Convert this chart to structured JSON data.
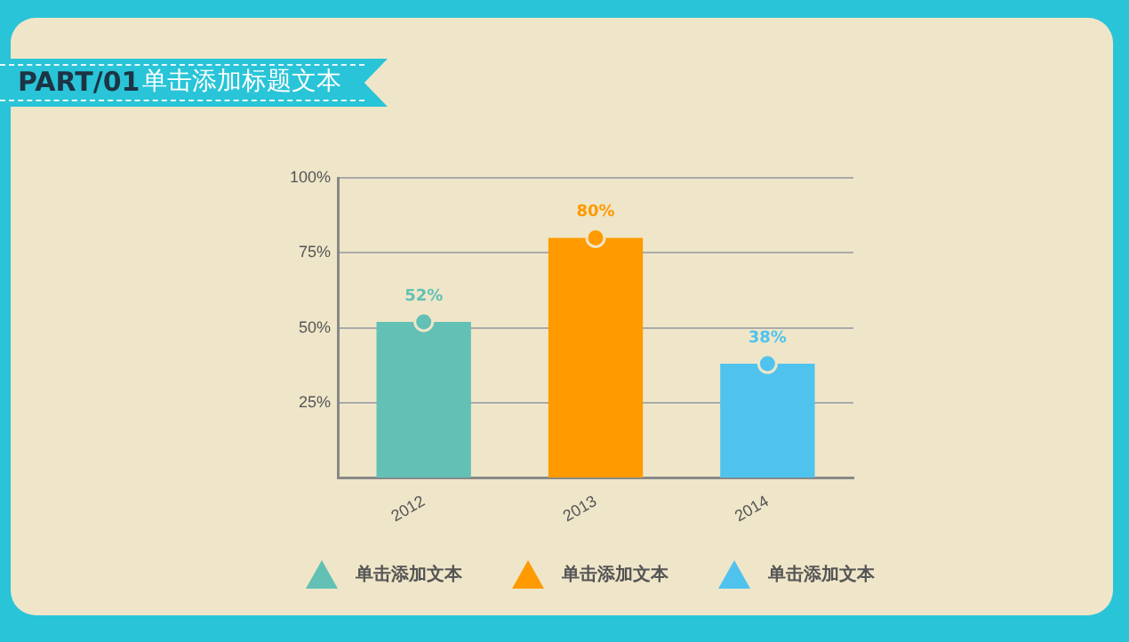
{
  "chart_data": {
    "type": "bar",
    "title": "PART/01",
    "subtitle": "单击添加标题文本",
    "categories": [
      "2012",
      "2013",
      "2014"
    ],
    "series": [
      {
        "name": "单击添加文本",
        "color": "#63c0b5",
        "values": [
          52,
          null,
          null
        ],
        "value_labels": [
          "52%",
          null,
          null
        ]
      },
      {
        "name": "单击添加文本",
        "color": "#ff9a00",
        "values": [
          null,
          80,
          null
        ],
        "value_labels": [
          null,
          "80%",
          null
        ]
      },
      {
        "name": "单击添加文本",
        "color": "#4fc3ee",
        "values": [
          null,
          null,
          38
        ],
        "value_labels": [
          null,
          null,
          "38%"
        ]
      },
      {
        "type": "scatter",
        "values": [
          52,
          80,
          38
        ],
        "colors": [
          "#63c0b5",
          "#ff9a00",
          "#4fc3ee"
        ],
        "marker": "circle"
      }
    ],
    "ylim": [
      0,
      100
    ],
    "yticks": [
      {
        "value": 25,
        "label": "25%"
      },
      {
        "value": 50,
        "label": "50%"
      },
      {
        "value": 75,
        "label": "75%"
      },
      {
        "value": 100,
        "label": "100%"
      }
    ],
    "grid": "y",
    "legend": "bottom"
  }
}
